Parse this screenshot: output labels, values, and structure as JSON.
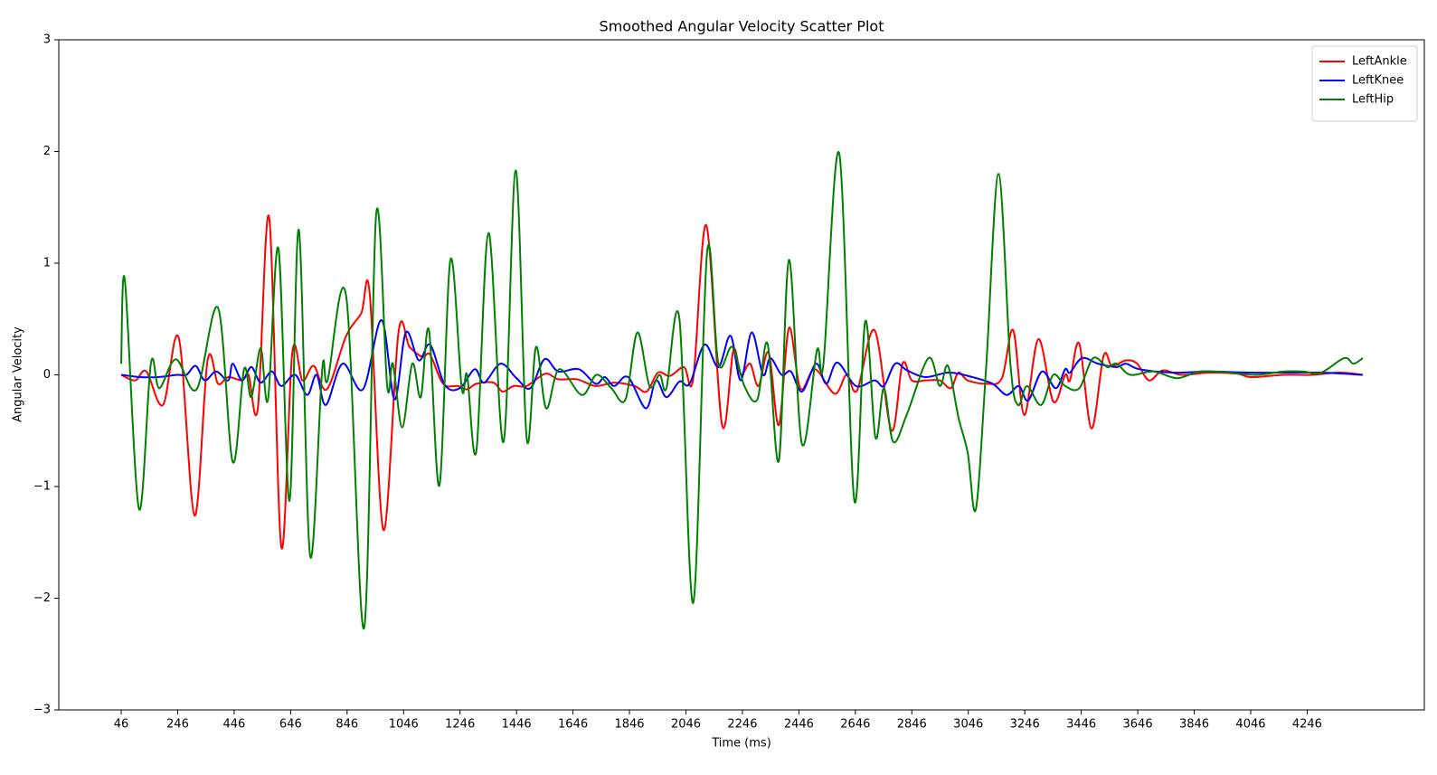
{
  "chart_data": {
    "type": "line",
    "title": "Smoothed Angular Velocity Scatter Plot",
    "xlabel": "Time (ms)",
    "ylabel": "Angular Velocity",
    "xlim": [
      -175,
      4661
    ],
    "ylim": [
      -3,
      3
    ],
    "xticks": [
      46,
      246,
      446,
      646,
      846,
      1046,
      1246,
      1446,
      1646,
      1846,
      2046,
      2246,
      2446,
      2646,
      2846,
      3046,
      3246,
      3446,
      3646,
      3846,
      4046,
      4246
    ],
    "yticks": [
      {
        "value": -3,
        "label": "−3"
      },
      {
        "value": -2,
        "label": "−2"
      },
      {
        "value": -1,
        "label": "−1"
      },
      0,
      1,
      2,
      3
    ],
    "legend": "upper right",
    "series": [
      {
        "name": "LeftAnkle",
        "color": "#ff0000",
        "x": [
          46,
          95,
          135,
          194,
          250,
          306,
          352,
          389,
          425,
          474,
          497,
          530,
          570,
          613,
          652,
          688,
          728,
          774,
          843,
          896,
          926,
          975,
          1028,
          1067,
          1113,
          1140,
          1186,
          1238,
          1271,
          1304,
          1364,
          1397,
          1436,
          1482,
          1548,
          1594,
          1660,
          1726,
          1792,
          1864,
          1907,
          1947,
          1989,
          2039,
          2072,
          2118,
          2174,
          2214,
          2240,
          2273,
          2303,
          2339,
          2375,
          2411,
          2451,
          2503,
          2573,
          2615,
          2652,
          2714,
          2774,
          2813,
          2846,
          2895,
          2945,
          2984,
          3011,
          3044,
          3110,
          3165,
          3205,
          3244,
          3294,
          3347,
          3389,
          3406,
          3439,
          3482,
          3525,
          3555,
          3604,
          3644,
          3686,
          3735,
          3801,
          3900,
          3999,
          4048,
          4164,
          4262,
          4361,
          4443
        ],
        "values": [
          0.0,
          -0.05,
          0.03,
          -0.27,
          0.33,
          -1.26,
          0.13,
          -0.08,
          -0.02,
          -0.05,
          0.0,
          -0.3,
          1.41,
          -1.54,
          0.2,
          -0.05,
          0.08,
          -0.13,
          0.35,
          0.55,
          0.73,
          -1.39,
          0.38,
          0.25,
          0.16,
          0.18,
          -0.08,
          -0.1,
          -0.13,
          -0.08,
          -0.07,
          -0.15,
          -0.1,
          -0.1,
          0.01,
          -0.04,
          -0.04,
          -0.1,
          -0.07,
          -0.1,
          -0.15,
          0.02,
          -0.01,
          0.07,
          -0.03,
          1.34,
          -0.45,
          0.22,
          0.0,
          0.1,
          -0.1,
          0.2,
          -0.45,
          0.42,
          -0.12,
          0.05,
          -0.17,
          0.0,
          -0.14,
          0.4,
          -0.5,
          0.1,
          -0.05,
          -0.05,
          -0.05,
          -0.12,
          0.02,
          -0.05,
          -0.08,
          -0.03,
          0.4,
          -0.36,
          0.32,
          -0.24,
          0.0,
          -0.05,
          0.28,
          -0.48,
          0.17,
          0.08,
          0.13,
          0.1,
          -0.05,
          0.04,
          0.0,
          0.02,
          0.01,
          -0.02,
          0.0,
          0.0,
          0.02,
          0.0
        ]
      },
      {
        "name": "LeftKnee",
        "color": "#0000ff",
        "x": [
          46,
          112,
          178,
          244,
          277,
          310,
          342,
          382,
          425,
          441,
          474,
          507,
          540,
          580,
          613,
          662,
          705,
          738,
          771,
          830,
          902,
          968,
          1014,
          1054,
          1100,
          1140,
          1192,
          1245,
          1298,
          1331,
          1390,
          1446,
          1495,
          1545,
          1594,
          1667,
          1726,
          1759,
          1792,
          1841,
          1904,
          1940,
          1977,
          2023,
          2059,
          2112,
          2161,
          2204,
          2240,
          2279,
          2319,
          2345,
          2385,
          2418,
          2457,
          2507,
          2543,
          2582,
          2648,
          2714,
          2747,
          2787,
          2829,
          2895,
          2978,
          3060,
          3132,
          3182,
          3225,
          3258,
          3307,
          3356,
          3389,
          3406,
          3449,
          3505,
          3571,
          3604,
          3653,
          3768,
          3900,
          4032,
          4164,
          4295,
          4443
        ],
        "values": [
          0.0,
          -0.02,
          -0.02,
          0.0,
          0.0,
          0.08,
          -0.05,
          0.03,
          -0.05,
          0.1,
          -0.05,
          0.07,
          -0.07,
          0.03,
          -0.1,
          0.0,
          -0.18,
          0.0,
          -0.27,
          0.1,
          -0.13,
          0.49,
          -0.22,
          0.38,
          0.13,
          0.27,
          -0.09,
          -0.12,
          0.05,
          -0.07,
          0.1,
          -0.03,
          -0.12,
          0.14,
          0.03,
          0.05,
          -0.08,
          -0.02,
          -0.1,
          -0.02,
          -0.3,
          -0.05,
          -0.2,
          -0.06,
          -0.08,
          0.27,
          0.07,
          0.35,
          -0.05,
          0.38,
          0.0,
          0.15,
          0.0,
          0.03,
          -0.15,
          0.1,
          -0.08,
          0.11,
          -0.1,
          -0.05,
          -0.1,
          0.1,
          0.04,
          -0.02,
          0.02,
          -0.02,
          -0.08,
          -0.18,
          -0.1,
          -0.23,
          0.03,
          -0.12,
          0.05,
          0.02,
          0.15,
          0.1,
          0.07,
          0.1,
          0.05,
          0.02,
          0.03,
          0.02,
          0.02,
          0.02,
          0.0
        ]
      },
      {
        "name": "LeftHip",
        "color": "#008000",
        "x": [
          46,
          59,
          109,
          151,
          181,
          240,
          313,
          389,
          441,
          481,
          507,
          540,
          566,
          603,
          642,
          675,
          715,
          758,
          777,
          843,
          906,
          949,
          988,
          1008,
          1041,
          1077,
          1107,
          1136,
          1173,
          1212,
          1252,
          1271,
          1304,
          1347,
          1400,
          1443,
          1482,
          1515,
          1551,
          1597,
          1677,
          1729,
          1782,
          1832,
          1874,
          1917,
          1953,
          1977,
          2023,
          2072,
          2121,
          2161,
          2210,
          2253,
          2299,
          2335,
          2375,
          2411,
          2457,
          2510,
          2533,
          2589,
          2642,
          2681,
          2717,
          2747,
          2780,
          2829,
          2905,
          2945,
          2974,
          3011,
          3044,
          3073,
          3110,
          3153,
          3195,
          3222,
          3254,
          3304,
          3347,
          3389,
          3439,
          3488,
          3538,
          3571,
          3620,
          3702,
          3785,
          3867,
          3966,
          4065,
          4164,
          4229,
          4295,
          4377,
          4410,
          4443
        ],
        "values": [
          0.1,
          0.85,
          -1.2,
          0.1,
          -0.12,
          0.14,
          -0.13,
          0.6,
          -0.78,
          0.05,
          -0.2,
          0.24,
          -0.22,
          1.13,
          -1.13,
          1.3,
          -1.62,
          0.05,
          -0.05,
          0.7,
          -2.27,
          1.44,
          -0.1,
          0.1,
          -0.47,
          0.1,
          -0.2,
          0.4,
          -0.99,
          1.03,
          -0.12,
          0.0,
          -0.68,
          1.27,
          -0.6,
          1.83,
          -0.57,
          0.25,
          -0.3,
          0.05,
          -0.18,
          0.0,
          -0.12,
          -0.22,
          0.38,
          -0.1,
          0.0,
          -0.12,
          0.5,
          -2.04,
          1.1,
          0.1,
          0.25,
          -0.1,
          -0.22,
          0.28,
          -0.77,
          1.03,
          -0.62,
          0.22,
          0.1,
          1.98,
          -1.12,
          0.48,
          -0.56,
          -0.12,
          -0.6,
          -0.35,
          0.15,
          -0.1,
          0.08,
          -0.38,
          -0.7,
          -1.2,
          0.1,
          1.8,
          0.1,
          -0.27,
          -0.1,
          -0.27,
          0.0,
          -0.1,
          -0.12,
          0.15,
          0.07,
          0.1,
          0.0,
          0.03,
          -0.03,
          0.03,
          0.02,
          0.0,
          0.03,
          0.03,
          0.02,
          0.15,
          0.1,
          0.15
        ]
      }
    ]
  }
}
